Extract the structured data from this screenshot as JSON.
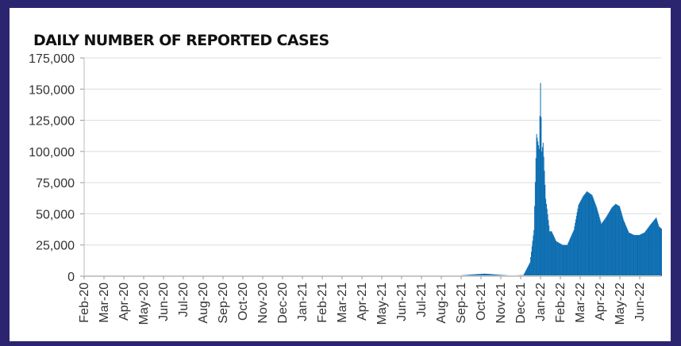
{
  "chart_data": {
    "type": "bar",
    "title": "DAILY NUMBER OF REPORTED CASES",
    "xlabel": "",
    "ylabel": "",
    "ylim": [
      0,
      175000
    ],
    "yticks": [
      "0",
      "25,000",
      "50,000",
      "75,000",
      "100,000",
      "125,000",
      "150,000",
      "175,000"
    ],
    "ytick_values": [
      0,
      25000,
      50000,
      75000,
      100000,
      125000,
      150000,
      175000
    ],
    "xticks": [
      "Feb-20",
      "Mar-20",
      "Apr-20",
      "May-20",
      "Jun-20",
      "Jul-20",
      "Aug-20",
      "Sep-20",
      "Oct-20",
      "Nov-20",
      "Dec-20",
      "Jan-21",
      "Feb-21",
      "Mar-21",
      "Apr-21",
      "May-21",
      "Jun-21",
      "Jul-21",
      "Aug-21",
      "Sep-21",
      "Oct-21",
      "Nov-21",
      "Dec-21",
      "Jan-22",
      "Feb-22",
      "Mar-22",
      "Apr-22",
      "May-22",
      "Jun-22"
    ],
    "xlim": [
      "2020-02-01",
      "2022-07-02"
    ],
    "grid": true,
    "color": "#0b6db0",
    "points": [
      [
        "2020-02-01",
        0
      ],
      [
        "2021-08-20",
        0
      ],
      [
        "2021-09-01",
        800
      ],
      [
        "2021-09-20",
        1500
      ],
      [
        "2021-10-05",
        2000
      ],
      [
        "2021-10-25",
        1200
      ],
      [
        "2021-11-15",
        500
      ],
      [
        "2021-12-03",
        900
      ],
      [
        "2021-12-13",
        11000
      ],
      [
        "2021-12-19",
        37000
      ],
      [
        "2021-12-23",
        114000
      ],
      [
        "2021-12-27",
        102000
      ],
      [
        "2021-12-29",
        155000
      ],
      [
        "2021-12-31",
        100000
      ],
      [
        "2022-01-02",
        107000
      ],
      [
        "2022-01-06",
        62000
      ],
      [
        "2022-01-08",
        54000
      ],
      [
        "2022-01-12",
        36000
      ],
      [
        "2022-01-15",
        36000
      ],
      [
        "2022-01-22",
        28000
      ],
      [
        "2022-02-01",
        25000
      ],
      [
        "2022-02-08",
        25000
      ],
      [
        "2022-02-12",
        30000
      ],
      [
        "2022-02-18",
        37000
      ],
      [
        "2022-02-25",
        57000
      ],
      [
        "2022-03-04",
        64000
      ],
      [
        "2022-03-10",
        68000
      ],
      [
        "2022-03-18",
        65000
      ],
      [
        "2022-03-25",
        55000
      ],
      [
        "2022-04-01",
        42000
      ],
      [
        "2022-04-08",
        47000
      ],
      [
        "2022-04-17",
        55000
      ],
      [
        "2022-04-23",
        58000
      ],
      [
        "2022-04-29",
        56000
      ],
      [
        "2022-05-05",
        45000
      ],
      [
        "2022-05-13",
        35000
      ],
      [
        "2022-05-21",
        33000
      ],
      [
        "2022-05-29",
        33000
      ],
      [
        "2022-06-06",
        35000
      ],
      [
        "2022-06-16",
        42000
      ],
      [
        "2022-06-24",
        47000
      ],
      [
        "2022-06-28",
        40000
      ],
      [
        "2022-07-02",
        38000
      ]
    ]
  }
}
